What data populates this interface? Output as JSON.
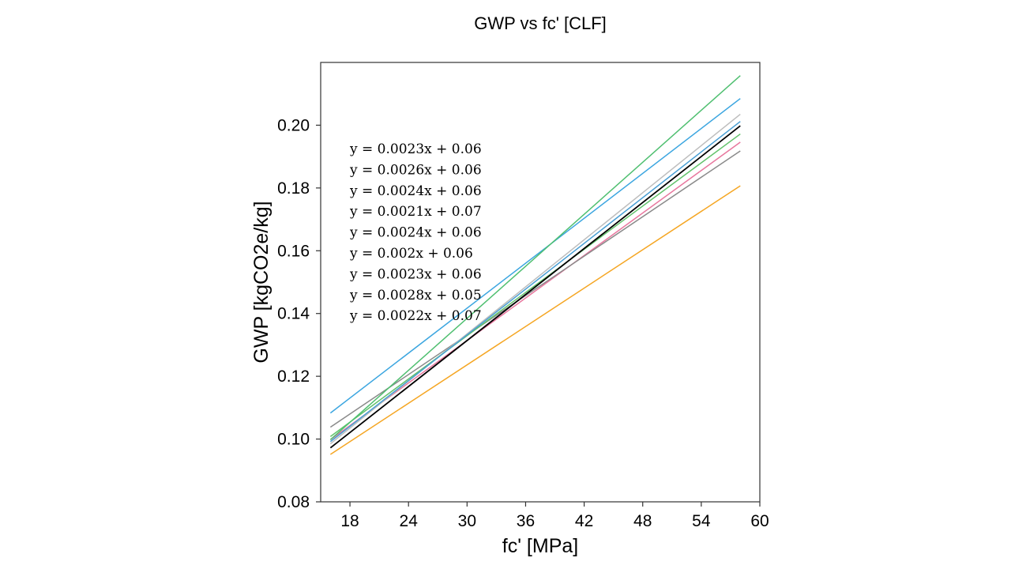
{
  "chart_data": {
    "type": "line",
    "title": "GWP vs fc' [CLF]",
    "xlabel": "fc' [MPa]",
    "ylabel": "GWP [kgCO2e/kg]",
    "xlim": [
      15,
      60
    ],
    "ylim": [
      0.08,
      0.22
    ],
    "xticks": [
      18,
      24,
      30,
      36,
      42,
      48,
      54,
      60
    ],
    "yticks": [
      0.08,
      0.1,
      0.12,
      0.14,
      0.16,
      0.18,
      0.2
    ],
    "ytick_labels": [
      "0.08",
      "0.10",
      "0.12",
      "0.14",
      "0.16",
      "0.18",
      "0.20"
    ],
    "grid": false,
    "series": [
      {
        "name": "orange",
        "color": "#f5a623",
        "x": [
          16,
          58
        ],
        "y": [
          0.0951,
          0.1807
        ]
      },
      {
        "name": "pink",
        "color": "#e8779e",
        "x": [
          16,
          58
        ],
        "y": [
          0.0998,
          0.1946
        ]
      },
      {
        "name": "gray",
        "color": "#8a8a8a",
        "x": [
          16,
          58
        ],
        "y": [
          0.1038,
          0.1918
        ]
      },
      {
        "name": "light-gray",
        "color": "#bdbdbd",
        "x": [
          16,
          58
        ],
        "y": [
          0.0985,
          0.2035
        ]
      },
      {
        "name": "green-light",
        "color": "#62c26b",
        "x": [
          16,
          58
        ],
        "y": [
          0.1008,
          0.1972
        ]
      },
      {
        "name": "blue",
        "color": "#3ca6e0",
        "x": [
          16,
          58
        ],
        "y": [
          0.1083,
          0.2085
        ]
      },
      {
        "name": "green",
        "color": "#4fbf70",
        "x": [
          16,
          58
        ],
        "y": [
          0.0998,
          0.2158
        ]
      },
      {
        "name": "teal-blue",
        "color": "#4a9fd4",
        "x": [
          16,
          58
        ],
        "y": [
          0.0992,
          0.2012
        ]
      },
      {
        "name": "black",
        "color": "#000000",
        "x": [
          16,
          58
        ],
        "y": [
          0.0972,
          0.1998
        ]
      }
    ],
    "annotations": [
      "y = 0.0023x + 0.06",
      "y = 0.0026x + 0.06",
      "y = 0.0024x + 0.06",
      "y = 0.0021x + 0.07",
      "y = 0.0024x + 0.06",
      "y = 0.002x + 0.06",
      "y = 0.0023x + 0.06",
      "y = 0.0028x + 0.05",
      "y = 0.0022x + 0.07"
    ]
  }
}
